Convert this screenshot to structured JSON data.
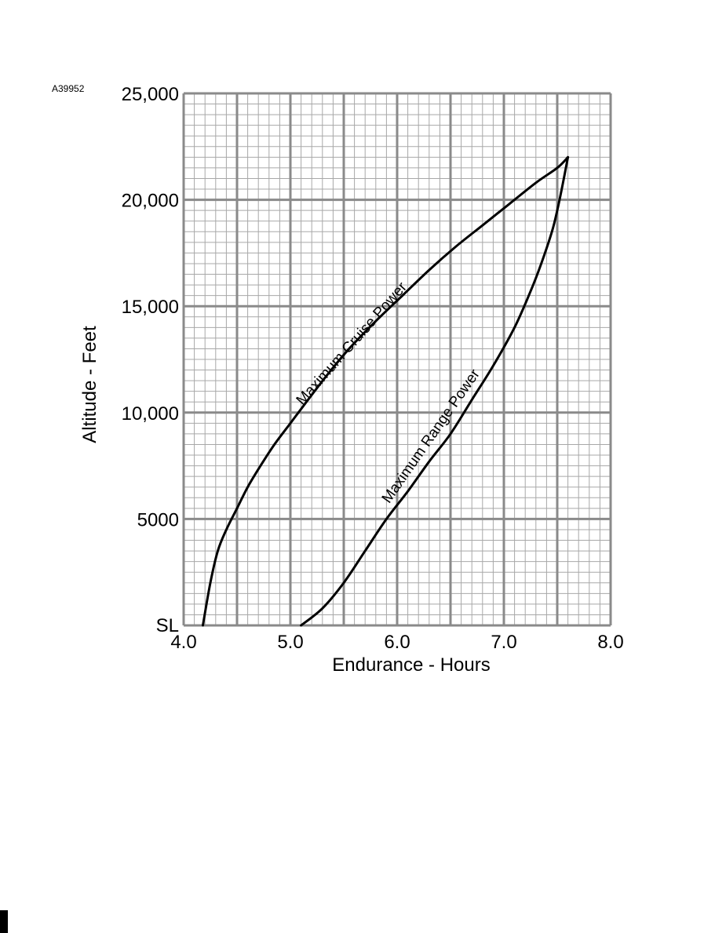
{
  "figure_id": "A39952",
  "colors": {
    "minor_grid": "#a8a8a8",
    "major_grid": "#8a8a8a",
    "curve": "#000000"
  },
  "chart_data": {
    "type": "line",
    "title": "",
    "xlabel": "Endurance - Hours",
    "ylabel": "Altitude - Feet",
    "xlim": [
      4.0,
      8.0
    ],
    "ylim": [
      0,
      25000
    ],
    "x_ticks": [
      {
        "value": 4.0,
        "label": "4.0"
      },
      {
        "value": 5.0,
        "label": "5.0"
      },
      {
        "value": 6.0,
        "label": "6.0"
      },
      {
        "value": 7.0,
        "label": "7.0"
      },
      {
        "value": 8.0,
        "label": "8.0"
      }
    ],
    "y_ticks": [
      {
        "value": 0,
        "label": "SL"
      },
      {
        "value": 5000,
        "label": "5000"
      },
      {
        "value": 10000,
        "label": "10,000"
      },
      {
        "value": 15000,
        "label": "15,000"
      },
      {
        "value": 20000,
        "label": "20,000"
      },
      {
        "value": 25000,
        "label": "25,000"
      }
    ],
    "grid": true,
    "minor_x_step": 0.1,
    "minor_y_step": 500,
    "major_x_step": 0.5,
    "major_y_step": 5000,
    "series": [
      {
        "name": "Maximum Cruise Power",
        "x": [
          4.18,
          4.25,
          4.32,
          4.4,
          4.5,
          4.6,
          4.72,
          4.85,
          5.0,
          5.15,
          5.35,
          5.55,
          5.8,
          6.05,
          6.3,
          6.55,
          6.8,
          7.05,
          7.3,
          7.5,
          7.6
        ],
        "y": [
          0,
          2000,
          3500,
          4500,
          5500,
          6500,
          7500,
          8500,
          9500,
          10500,
          11800,
          13000,
          14300,
          15500,
          16700,
          17800,
          18800,
          19800,
          20800,
          21500,
          22000
        ],
        "label_value": {
          "x": 5.65,
          "y": 12900
        },
        "label_angle": -48.5
      },
      {
        "name": "Maximum Range Power",
        "x": [
          5.1,
          5.3,
          5.5,
          5.7,
          5.9,
          6.1,
          6.3,
          6.5,
          6.7,
          6.9,
          7.1,
          7.25,
          7.35,
          7.45,
          7.5,
          7.55,
          7.6
        ],
        "y": [
          0,
          800,
          2000,
          3500,
          5000,
          6300,
          7700,
          9000,
          10600,
          12200,
          14000,
          15700,
          17000,
          18500,
          19500,
          20700,
          22000
        ]
      }
    ]
  }
}
